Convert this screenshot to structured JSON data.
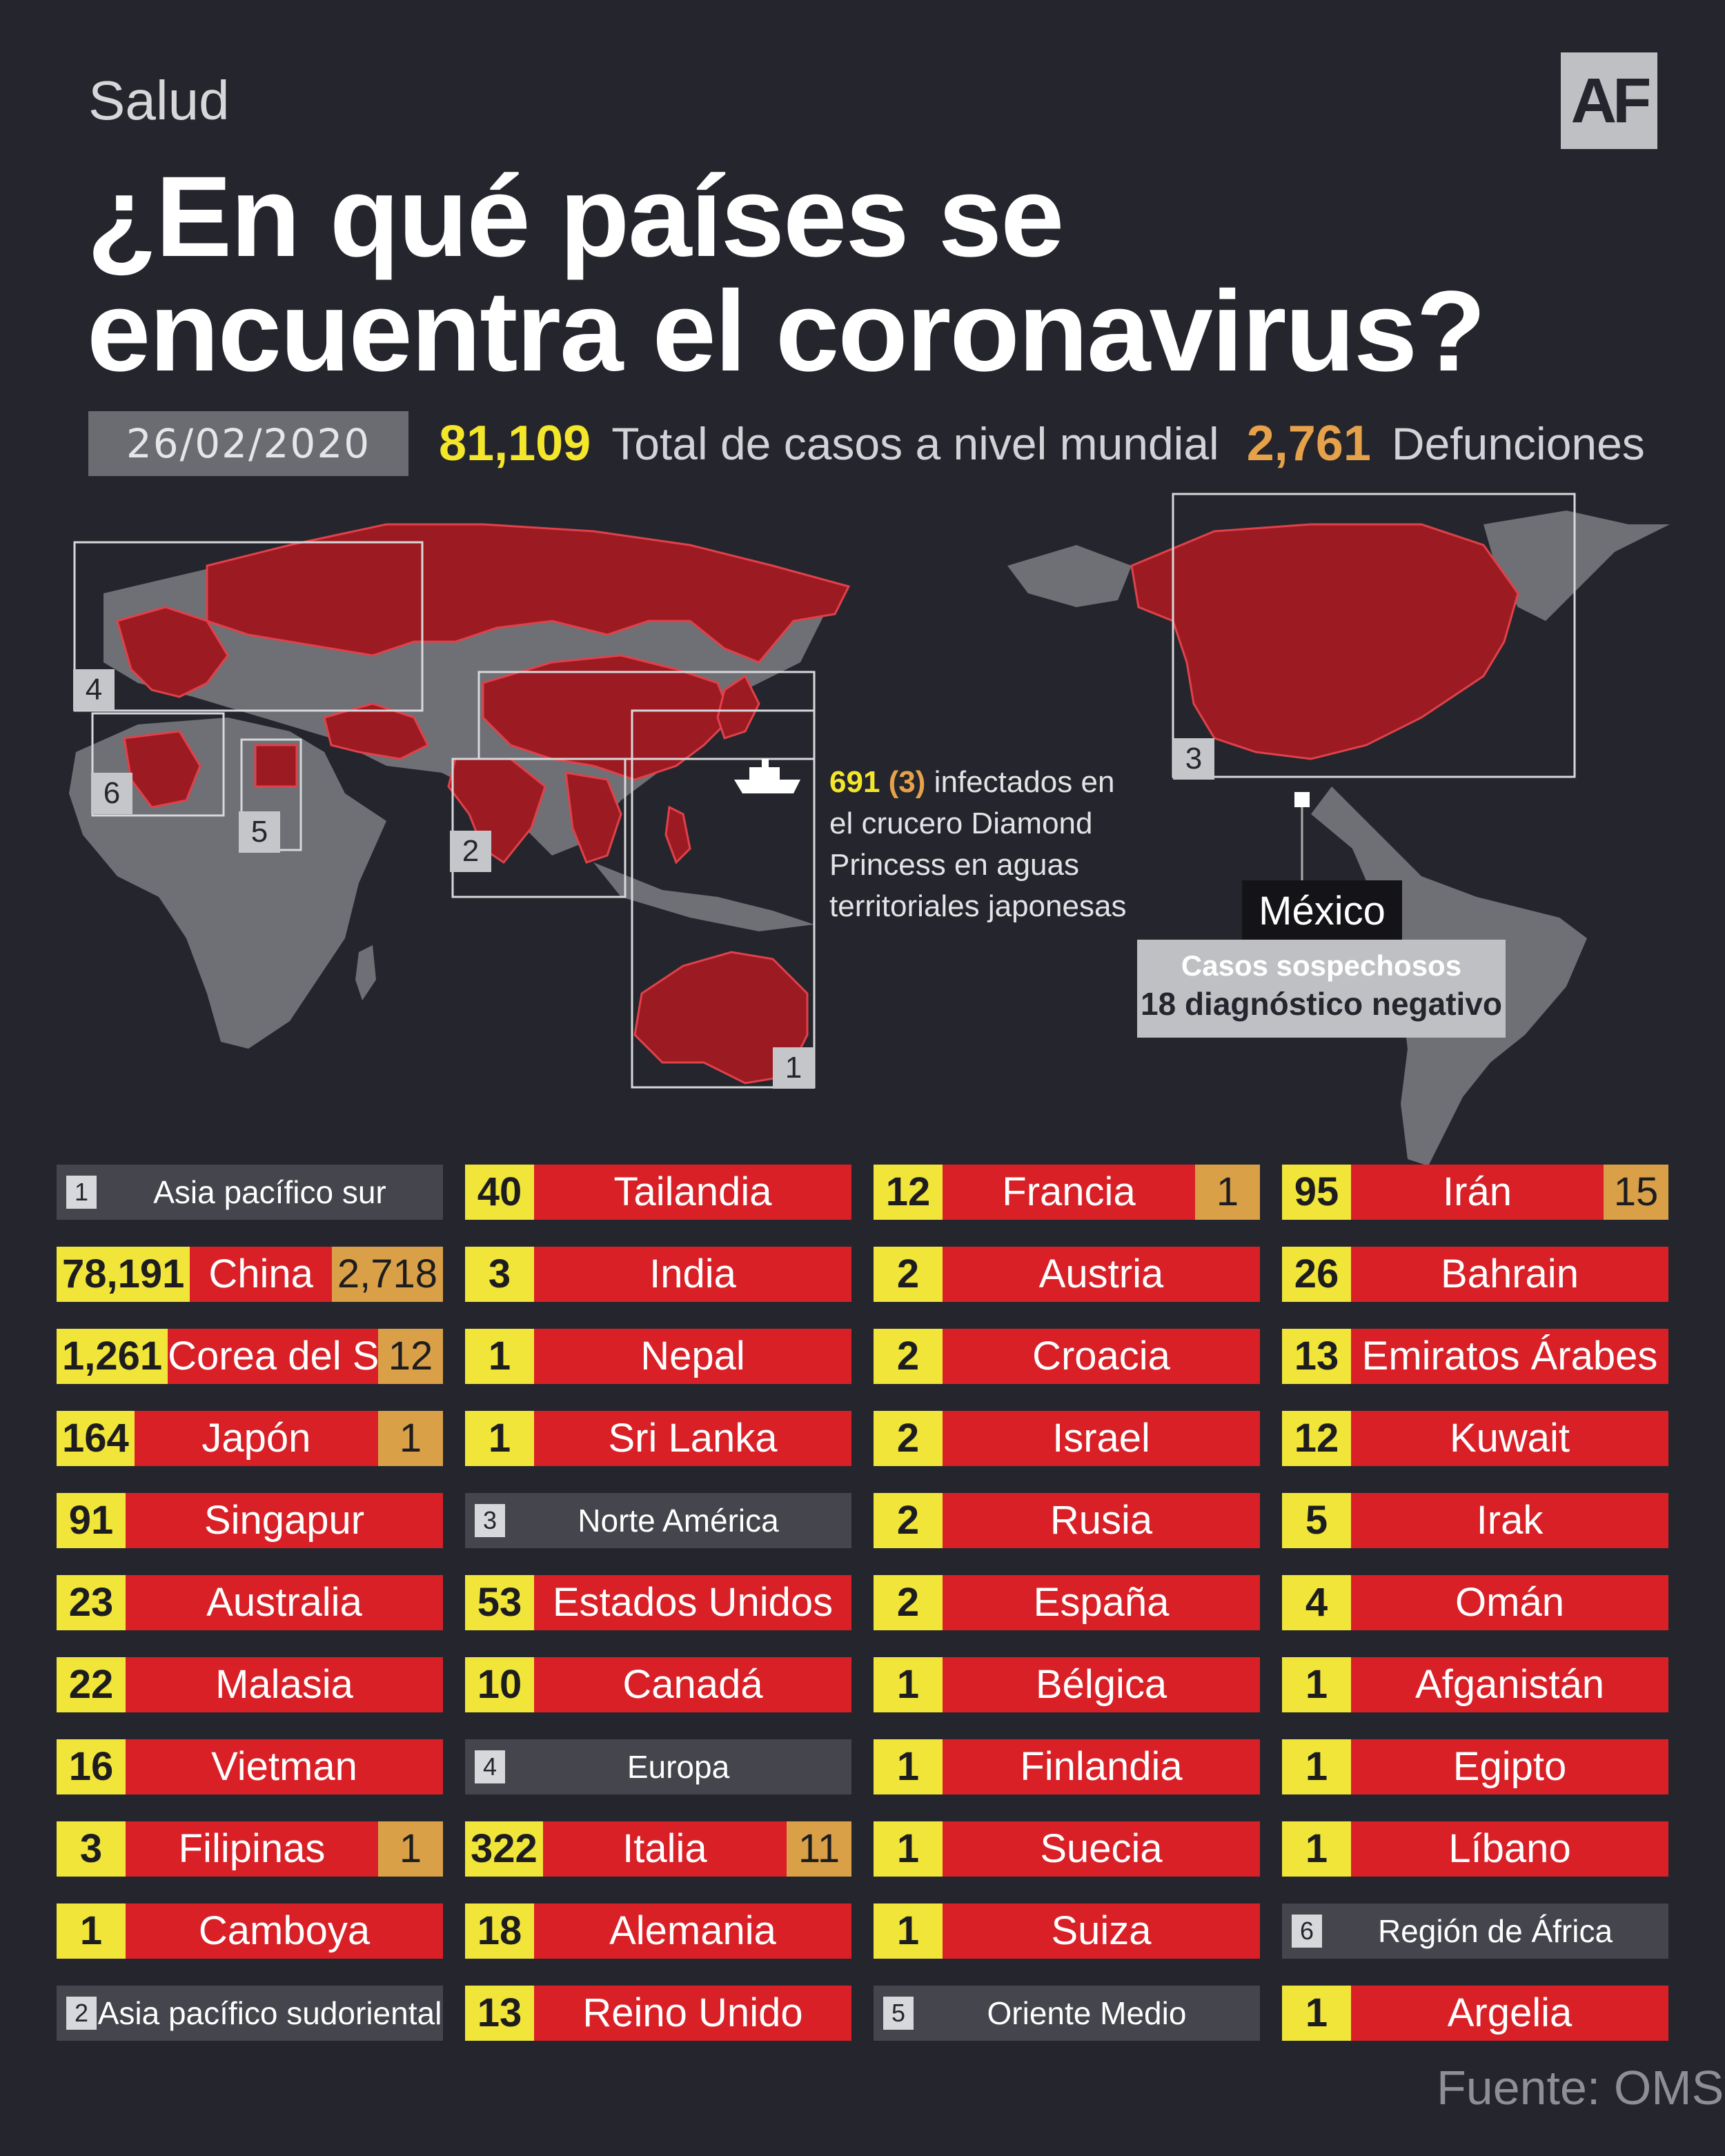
{
  "header": {
    "section": "Salud",
    "logo": "AF",
    "title_line1": "¿En qué países se",
    "title_line2": "encuentra el coronavirus?",
    "date": "26/02/2020",
    "total_cases": "81,109",
    "total_cases_label": "Total de casos a nivel mundial",
    "deaths": "2,761",
    "deaths_label": "Defunciones"
  },
  "map": {
    "colors": {
      "affected": "#9c1b22",
      "unaffected": "#6f7075",
      "border": "#e0414a"
    },
    "region_labels": [
      "1",
      "2",
      "3",
      "4",
      "5",
      "6"
    ],
    "ship": {
      "icon": "ship-icon",
      "infected": "691",
      "deaths": "(3)",
      "text_1": "infectados en",
      "text_2": "el crucero Diamond",
      "text_3": "Princess en aguas",
      "text_4": "territoriales japonesas"
    },
    "mexico": {
      "name": "México",
      "line1": "Casos sospechosos",
      "line2": "18 diagnóstico negativo"
    }
  },
  "table": {
    "columns": [
      [
        {
          "type": "header",
          "num": "1",
          "name": "Asia pacífico sur"
        },
        {
          "num": "78,191",
          "name": "China",
          "deaths": "2,718"
        },
        {
          "num": "1,261",
          "name": "Corea del Sur",
          "deaths": "12"
        },
        {
          "num": "164",
          "name": "Japón",
          "deaths": "1"
        },
        {
          "num": "91",
          "name": "Singapur"
        },
        {
          "num": "23",
          "name": "Australia"
        },
        {
          "num": "22",
          "name": "Malasia"
        },
        {
          "num": "16",
          "name": "Vietman"
        },
        {
          "num": "3",
          "name": "Filipinas",
          "deaths": "1"
        },
        {
          "num": "1",
          "name": "Camboya"
        },
        {
          "type": "header",
          "num": "2",
          "name": "Asia pacífico sudoriental"
        }
      ],
      [
        {
          "num": "40",
          "name": "Tailandia"
        },
        {
          "num": "3",
          "name": "India"
        },
        {
          "num": "1",
          "name": "Nepal"
        },
        {
          "num": "1",
          "name": "Sri Lanka"
        },
        {
          "type": "header",
          "num": "3",
          "name": "Norte América"
        },
        {
          "num": "53",
          "name": "Estados Unidos"
        },
        {
          "num": "10",
          "name": "Canadá"
        },
        {
          "type": "header",
          "num": "4",
          "name": "Europa"
        },
        {
          "num": "322",
          "name": "Italia",
          "deaths": "11"
        },
        {
          "num": "18",
          "name": "Alemania"
        },
        {
          "num": "13",
          "name": "Reino Unido"
        }
      ],
      [
        {
          "num": "12",
          "name": "Francia",
          "deaths": "1"
        },
        {
          "num": "2",
          "name": "Austria"
        },
        {
          "num": "2",
          "name": "Croacia"
        },
        {
          "num": "2",
          "name": "Israel"
        },
        {
          "num": "2",
          "name": "Rusia"
        },
        {
          "num": "2",
          "name": "España"
        },
        {
          "num": "1",
          "name": "Bélgica"
        },
        {
          "num": "1",
          "name": "Finlandia"
        },
        {
          "num": "1",
          "name": "Suecia"
        },
        {
          "num": "1",
          "name": "Suiza"
        },
        {
          "type": "header",
          "num": "5",
          "name": "Oriente Medio"
        }
      ],
      [
        {
          "num": "95",
          "name": "Irán",
          "deaths": "15"
        },
        {
          "num": "26",
          "name": "Bahrain"
        },
        {
          "num": "13",
          "name": "Emiratos Árabes"
        },
        {
          "num": "12",
          "name": "Kuwait"
        },
        {
          "num": "5",
          "name": "Irak"
        },
        {
          "num": "4",
          "name": "Omán"
        },
        {
          "num": "1",
          "name": "Afganistán"
        },
        {
          "num": "1",
          "name": "Egipto"
        },
        {
          "num": "1",
          "name": "Líbano"
        },
        {
          "type": "header",
          "num": "6",
          "name": "Región de África"
        },
        {
          "num": "1",
          "name": "Argelia"
        }
      ]
    ]
  },
  "source": "Fuente: OMS"
}
